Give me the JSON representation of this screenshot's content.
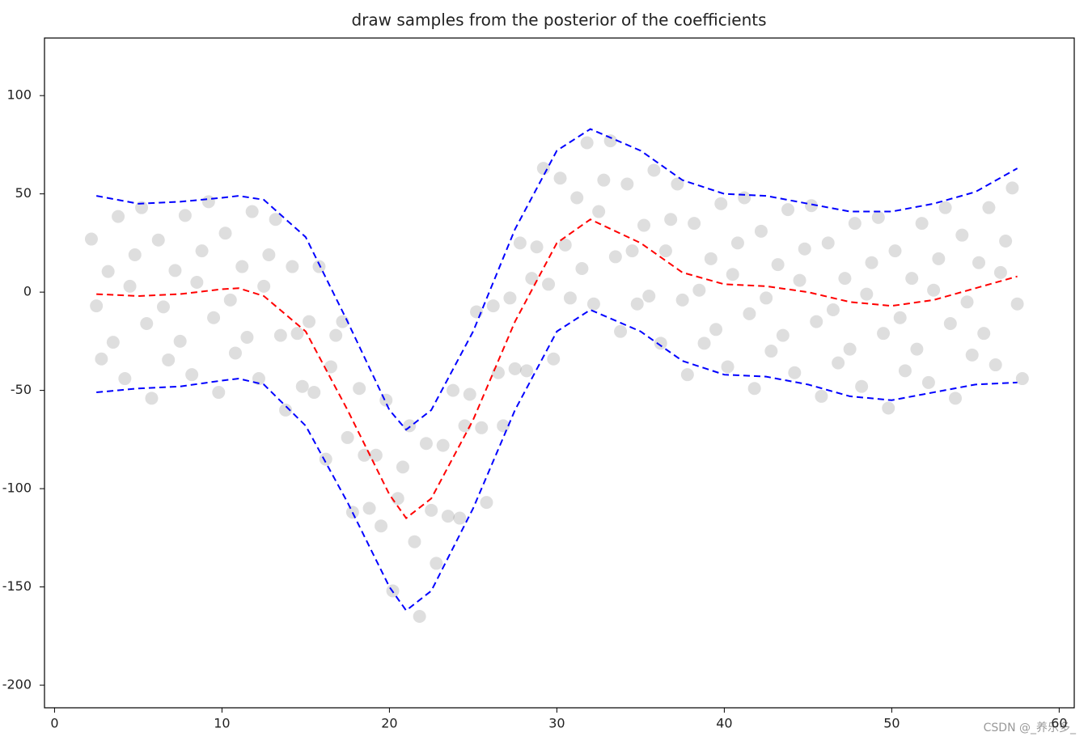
{
  "chart_data": {
    "type": "scatter",
    "title": "draw samples from the posterior of the coefficients",
    "xlim": [
      -0.6,
      60.9
    ],
    "xticks": [
      0,
      10,
      20,
      30,
      40,
      50,
      60
    ],
    "ylim": [
      -211.5,
      129.3
    ],
    "yticks": [
      -200,
      -150,
      -100,
      -50,
      0,
      50,
      100
    ],
    "scatter": {
      "color": "#000000",
      "x": [
        2.2,
        2.5,
        2.8,
        3.2,
        3.5,
        3.8,
        4.2,
        4.5,
        4.8,
        5.2,
        5.5,
        5.8,
        6.2,
        6.5,
        6.8,
        7.2,
        7.5,
        7.8,
        8.2,
        8.5,
        8.8,
        9.2,
        9.5,
        9.8,
        10.2,
        10.5,
        10.8,
        11.2,
        11.5,
        11.8,
        12.2,
        12.5,
        12.8,
        13.2,
        13.5,
        13.8,
        14.2,
        14.5,
        14.8,
        15.2,
        15.5,
        15.8,
        16.2,
        16.5,
        16.8,
        17.2,
        17.5,
        17.8,
        18.2,
        18.5,
        18.8,
        19.2,
        19.5,
        19.8,
        20.2,
        20.5,
        20.8,
        21.2,
        21.5,
        21.8,
        22.2,
        22.5,
        22.8,
        23.2,
        23.5,
        23.8,
        24.2,
        24.5,
        24.8,
        25.2,
        25.5,
        25.8,
        26.2,
        26.5,
        26.8,
        27.2,
        27.5,
        27.8,
        28.2,
        28.5,
        28.8,
        29.2,
        29.5,
        29.8,
        30.2,
        30.5,
        30.8,
        31.2,
        31.5,
        31.8,
        32.2,
        32.5,
        32.8,
        33.2,
        33.5,
        33.8,
        34.2,
        34.5,
        34.8,
        35.2,
        35.5,
        35.8,
        36.2,
        36.5,
        36.8,
        37.2,
        37.5,
        37.8,
        38.2,
        38.5,
        38.8,
        39.2,
        39.5,
        39.8,
        40.2,
        40.5,
        40.8,
        41.2,
        41.5,
        41.8,
        42.2,
        42.5,
        42.8,
        43.2,
        43.5,
        43.8,
        44.2,
        44.5,
        44.8,
        45.2,
        45.5,
        45.8,
        46.2,
        46.5,
        46.8,
        47.2,
        47.5,
        47.8,
        48.2,
        48.5,
        48.8,
        49.2,
        49.5,
        49.8,
        50.2,
        50.5,
        50.8,
        51.2,
        51.5,
        51.8,
        52.2,
        52.5,
        52.8,
        53.2,
        53.5,
        53.8,
        54.2,
        54.5,
        54.8,
        55.2,
        55.5,
        55.8,
        56.2,
        56.5,
        56.8,
        57.2,
        57.5,
        57.8
      ],
      "y": [
        27,
        -7,
        -34,
        10.5,
        -25.5,
        38.5,
        -44,
        3,
        19,
        43,
        -16,
        -54,
        26.5,
        -7.5,
        -34.5,
        11,
        -25,
        39,
        -42,
        5,
        21,
        46,
        -13,
        -51,
        30,
        -4,
        -31,
        13,
        -23,
        41,
        -44,
        3,
        19,
        37,
        -22,
        -60,
        13,
        -21,
        -48,
        -15,
        -51,
        13,
        -85,
        -38,
        -22,
        -15,
        -74,
        -112,
        -49,
        -83,
        -110,
        -83,
        -119,
        -55,
        -152,
        -105,
        -89,
        -68,
        -127,
        -165,
        -77,
        -111,
        -138,
        -78,
        -114,
        -50,
        -115,
        -68,
        -52,
        -10,
        -69,
        -107,
        -7,
        -41,
        -68,
        -3,
        -39,
        25,
        -40,
        7,
        23,
        63,
        4,
        -34,
        58,
        24,
        -3,
        48,
        12,
        76,
        -6,
        41,
        57,
        77,
        18,
        -20,
        55,
        21,
        -6,
        34,
        -2,
        62,
        -26,
        21,
        37,
        55,
        -4,
        -42,
        35,
        1,
        -26,
        17,
        -19,
        45,
        -38,
        9,
        25,
        48,
        -11,
        -49,
        31,
        -3,
        -30,
        14,
        -22,
        42,
        -41,
        6,
        22,
        44,
        -15,
        -53,
        25,
        -9,
        -36,
        7,
        -29,
        35,
        -48,
        -1,
        15,
        38,
        -21,
        -59,
        21,
        -13,
        -40,
        7,
        -29,
        35,
        -46,
        1,
        17,
        43,
        -16,
        -54,
        29,
        -5,
        -32,
        15,
        -21,
        43,
        -37,
        10,
        26,
        53,
        -6,
        -44
      ]
    },
    "lines": [
      {
        "color": "#0000ff",
        "x": [
          2.5,
          5,
          7.5,
          10,
          11,
          12.5,
          15,
          17.5,
          20,
          21,
          22.5,
          25,
          27.5,
          30,
          32,
          35,
          37.5,
          40,
          42.5,
          45,
          47.5,
          50,
          52.5,
          55,
          57.5
        ],
        "values": [
          49,
          45,
          46,
          48,
          49,
          47,
          28,
          -15,
          -60,
          -70,
          -60,
          -20,
          32,
          72,
          83,
          72,
          57,
          50,
          49,
          45,
          41,
          41,
          45,
          51,
          63
        ]
      },
      {
        "color": "#ff0000",
        "x": [
          2.5,
          5,
          7.5,
          10,
          11,
          12.5,
          15,
          17.5,
          20,
          21,
          22.5,
          25,
          27.5,
          30,
          32,
          35,
          37.5,
          40,
          42.5,
          45,
          47.5,
          50,
          52.5,
          55,
          57.5
        ],
        "values": [
          -1,
          -2,
          -1,
          1.5,
          2,
          -2,
          -20,
          -60,
          -103,
          -115,
          -105,
          -65,
          -15,
          25,
          37,
          25,
          10,
          4,
          3,
          0,
          -5,
          -7,
          -4,
          2,
          8
        ]
      },
      {
        "color": "#0000ff",
        "x": [
          2.5,
          5,
          7.5,
          10,
          11,
          12.5,
          15,
          17.5,
          20,
          21,
          22.5,
          25,
          27.5,
          30,
          32,
          35,
          37.5,
          40,
          42.5,
          45,
          47.5,
          50,
          52.5,
          55,
          57.5
        ],
        "values": [
          -51,
          -49,
          -48,
          -45,
          -44,
          -47,
          -68,
          -107,
          -150,
          -162,
          -152,
          -110,
          -60,
          -20,
          -9,
          -20,
          -35,
          -42,
          -43,
          -47,
          -53,
          -55,
          -51,
          -47,
          -46
        ]
      }
    ]
  },
  "watermark": "CSDN @_养乐多_"
}
